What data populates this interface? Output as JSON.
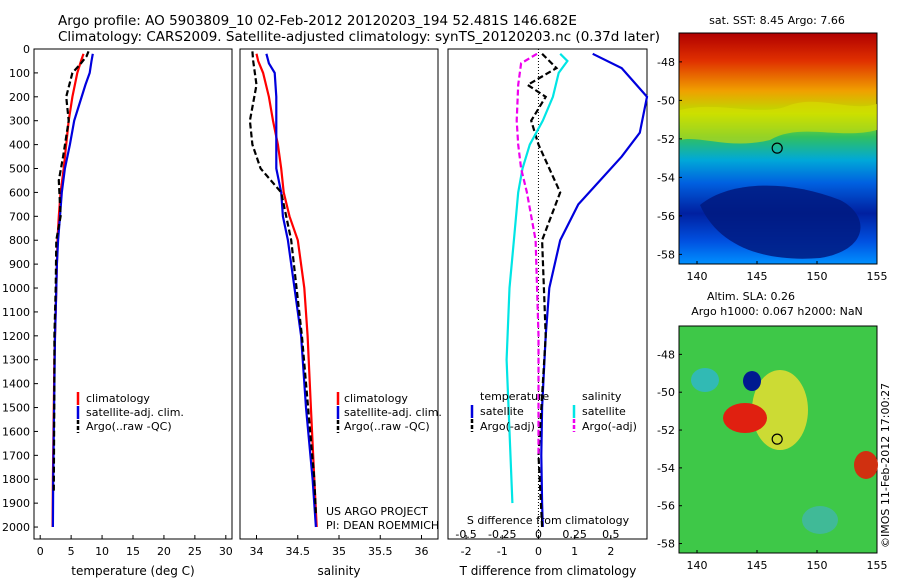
{
  "header": {
    "line1": "Argo profile: AO 5903809_10 02-Feb-2012 20120203_194 52.481S 146.682E",
    "line2": "Climatology: CARS2009. Satellite-adjusted climatology: synTS_20120203.nc (0.37d later)"
  },
  "colors": {
    "climatology": "#ff0000",
    "satellite": "#0000dd",
    "argo": "#000000",
    "salinity_satellite": "#00e5e5",
    "salinity_argo": "#ee00ee"
  },
  "depth_axis": {
    "ylim": [
      0,
      2050
    ],
    "ticks": [
      0,
      100,
      200,
      300,
      400,
      500,
      600,
      700,
      800,
      900,
      1000,
      1100,
      1200,
      1300,
      1400,
      1500,
      1600,
      1700,
      1800,
      1900,
      2000
    ]
  },
  "chart_data": [
    {
      "type": "line",
      "id": "temperature_profile",
      "xlabel": "temperature (deg C)",
      "xlim": [
        -1,
        31
      ],
      "xticks": [
        0,
        5,
        10,
        15,
        20,
        25,
        30
      ],
      "ylim": [
        0,
        2050
      ],
      "legend": [
        "climatology",
        "satellite-adj. clim.",
        "Argo(..raw -QC)"
      ],
      "series": [
        {
          "name": "climatology",
          "color": "#ff0000",
          "dash": "",
          "x": [
            7.0,
            6.6,
            6.0,
            5.2,
            4.6,
            4.2,
            3.8,
            3.3,
            3.0,
            2.8,
            2.7,
            2.6,
            2.5,
            2.4,
            2.3,
            2.25,
            2.2,
            2.15,
            2.1,
            2.05,
            2.0
          ],
          "y": [
            20,
            50,
            100,
            200,
            300,
            400,
            500,
            600,
            700,
            800,
            900,
            1000,
            1100,
            1200,
            1300,
            1400,
            1500,
            1600,
            1700,
            1800,
            2000
          ]
        },
        {
          "name": "satellite-adj. clim.",
          "color": "#0000dd",
          "dash": "",
          "x": [
            8.5,
            8.3,
            8.0,
            7.3,
            5.5,
            4.8,
            4.0,
            3.5,
            3.2,
            2.9,
            2.7,
            2.6,
            2.5,
            2.4,
            2.35,
            2.3,
            2.25,
            2.2,
            2.15,
            2.1,
            2.05
          ],
          "y": [
            20,
            50,
            100,
            150,
            300,
            400,
            500,
            600,
            700,
            800,
            900,
            1000,
            1100,
            1200,
            1300,
            1400,
            1500,
            1600,
            1700,
            1800,
            2000
          ]
        },
        {
          "name": "Argo(..raw -QC)",
          "color": "#000000",
          "dash": "6,3",
          "x": [
            7.8,
            7.5,
            6.6,
            5.2,
            4.2,
            4.6,
            3.7,
            3.0,
            3.3,
            2.6,
            2.5,
            2.3,
            2.3,
            2.25,
            2.2
          ],
          "y": [
            10,
            30,
            60,
            100,
            200,
            300,
            450,
            550,
            700,
            800,
            1000,
            1200,
            1400,
            1600,
            1850
          ]
        }
      ]
    },
    {
      "type": "line",
      "id": "salinity_profile",
      "xlabel": "salinity",
      "xlim": [
        33.8,
        36.2
      ],
      "xticks": [
        34,
        34.5,
        35,
        35.5,
        36
      ],
      "ylim": [
        0,
        2050
      ],
      "legend": [
        "climatology",
        "satellite-adj. clim.",
        "Argo(..raw -QC)"
      ],
      "annotations": [
        "US ARGO PROJECT",
        "PI: DEAN ROEMMICH"
      ],
      "series": [
        {
          "name": "climatology",
          "color": "#ff0000",
          "dash": "",
          "x": [
            34.0,
            34.02,
            34.08,
            34.15,
            34.2,
            34.26,
            34.3,
            34.33,
            34.4,
            34.5,
            34.58,
            34.62,
            34.66,
            34.7,
            34.73
          ],
          "y": [
            20,
            50,
            100,
            200,
            300,
            400,
            500,
            600,
            700,
            800,
            1000,
            1200,
            1500,
            1800,
            2000
          ]
        },
        {
          "name": "satellite-adj. clim.",
          "color": "#0000dd",
          "dash": "",
          "x": [
            34.12,
            34.15,
            34.22,
            34.24,
            34.24,
            34.24,
            34.24,
            34.3,
            34.32,
            34.38,
            34.46,
            34.54,
            34.6,
            34.68,
            34.72
          ],
          "y": [
            20,
            60,
            100,
            200,
            300,
            400,
            500,
            600,
            700,
            800,
            1000,
            1200,
            1500,
            1800,
            2000
          ]
        },
        {
          "name": "Argo(..raw -QC)",
          "color": "#000000",
          "dash": "6,3",
          "x": [
            33.95,
            33.96,
            34.0,
            33.92,
            33.95,
            34.05,
            34.3,
            34.42,
            34.55,
            34.7,
            34.72
          ],
          "y": [
            10,
            50,
            150,
            300,
            400,
            500,
            600,
            800,
            1200,
            1800,
            1950
          ]
        }
      ]
    },
    {
      "type": "line",
      "id": "difference_profile",
      "xlabel": "T difference from climatology",
      "xlabel_top": "S difference from climatology",
      "xlim": [
        -2.5,
        3.0
      ],
      "xticks": [
        -2,
        -1,
        0,
        1,
        2
      ],
      "xticks_s": [
        "-0.5",
        "-0.25",
        "0",
        "0.25",
        "0.5"
      ],
      "ylim": [
        0,
        2050
      ],
      "legend_groups": [
        {
          "title": "temperature",
          "items": [
            "satellite",
            "Argo(-adj)"
          ]
        },
        {
          "title": "salinity",
          "items": [
            "satellite",
            "Argo(-adj)"
          ]
        }
      ],
      "series": [
        {
          "name": "temperature satellite",
          "color": "#0000dd",
          "dash": "",
          "x": [
            1.5,
            2.3,
            3.0,
            2.8,
            2.3,
            1.7,
            1.1,
            0.6,
            0.3,
            0.2,
            0.1,
            0.08,
            0.1,
            0.12
          ],
          "y": [
            20,
            80,
            200,
            350,
            450,
            550,
            650,
            800,
            1000,
            1200,
            1500,
            1700,
            1900,
            2000
          ]
        },
        {
          "name": "temperature Argo(-adj)",
          "color": "#000000",
          "dash": "6,3",
          "x": [
            0.1,
            0.5,
            -0.3,
            0.2,
            -0.2,
            0.0,
            0.3,
            0.6,
            0.1,
            0.2,
            0.0,
            0.1
          ],
          "y": [
            20,
            80,
            150,
            200,
            300,
            400,
            500,
            600,
            800,
            1200,
            1700,
            2000
          ]
        },
        {
          "name": "salinity satellite",
          "color": "#00e5e5",
          "dash": "",
          "x": [
            0.15,
            0.2,
            0.14,
            0.1,
            0.03,
            -0.06,
            -0.11,
            -0.14,
            -0.17,
            -0.2,
            -0.22,
            -0.2,
            -0.18
          ],
          "y": [
            20,
            50,
            100,
            200,
            300,
            400,
            500,
            600,
            800,
            1000,
            1300,
            1600,
            1900
          ]
        },
        {
          "name": "salinity Argo(-adj)",
          "color": "#ee00ee",
          "dash": "6,3",
          "x": [
            -0.01,
            -0.12,
            -0.14,
            -0.15,
            -0.14,
            -0.12,
            -0.08,
            -0.02,
            0.0,
            0.0
          ],
          "y": [
            20,
            60,
            150,
            300,
            400,
            500,
            600,
            800,
            1200,
            1700
          ]
        }
      ]
    }
  ],
  "maps": [
    {
      "id": "sst_map",
      "title": "sat. SST: 8.45  Argo: 7.66",
      "xlim": [
        138.5,
        155
      ],
      "ylim": [
        -58.5,
        -46.5
      ],
      "xticks": [
        140,
        145,
        150,
        155
      ],
      "yticks": [
        -48,
        -50,
        -52,
        -54,
        -56,
        -58
      ],
      "marker": {
        "lon": 146.682,
        "lat": -52.481
      }
    },
    {
      "id": "sla_map",
      "title_line1": "Altim. SLA: 0.26",
      "title_line2": "Argo h1000: 0.067 h2000: NaN",
      "xlim": [
        138.5,
        155
      ],
      "ylim": [
        -58.5,
        -46.5
      ],
      "xticks": [
        140,
        145,
        150,
        155
      ],
      "yticks": [
        -48,
        -50,
        -52,
        -54,
        -56,
        -58
      ],
      "marker": {
        "lon": 146.682,
        "lat": -52.481
      },
      "side_label": "©IMOS 11-Feb-2012 17:00:27"
    }
  ]
}
